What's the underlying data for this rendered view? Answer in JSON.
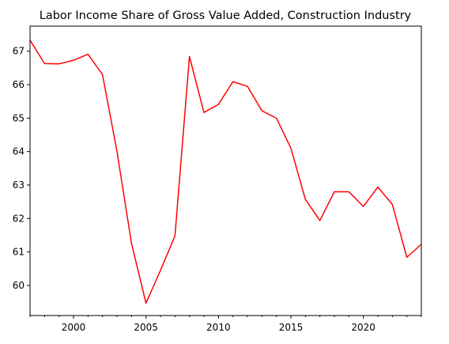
{
  "chart_data": {
    "type": "line",
    "title": "Labor Income Share of Gross Value Added, Construction Industry",
    "xlabel": "",
    "ylabel": "",
    "xlim": [
      1997,
      2024
    ],
    "ylim": [
      59.1,
      67.75
    ],
    "grid": false,
    "legend": "none",
    "x_ticks": [
      2000,
      2005,
      2010,
      2015,
      2020
    ],
    "y_ticks": [
      60,
      61,
      62,
      63,
      64,
      65,
      66,
      67
    ],
    "x_minor_ticks": true,
    "series": [
      {
        "color": "#ff0000",
        "x": [
          1997,
          1998,
          1999,
          2000,
          2001,
          2002,
          2003,
          2004,
          2005,
          2006,
          2007,
          2008,
          2009,
          2010,
          2011,
          2012,
          2013,
          2014,
          2015,
          2016,
          2017,
          2018,
          2019,
          2020,
          2021,
          2022,
          2023,
          2024
        ],
        "y": [
          67.33,
          66.63,
          66.62,
          66.73,
          66.91,
          66.3,
          64.0,
          61.26,
          59.47,
          60.45,
          61.48,
          66.84,
          65.17,
          65.41,
          66.09,
          65.95,
          65.22,
          65.0,
          64.1,
          62.57,
          61.94,
          62.8,
          62.8,
          62.36,
          62.94,
          62.42,
          60.84,
          61.23
        ]
      }
    ]
  }
}
